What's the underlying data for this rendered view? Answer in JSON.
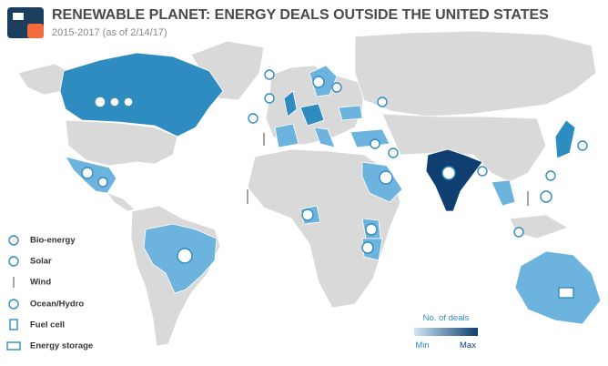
{
  "header": {
    "title": "RENEWABLE PLANET: ENERGY DEALS OUTSIDE THE UNITED STATES",
    "subtitle": "2015-2017 (as of 2/14/17)"
  },
  "legend": {
    "items": [
      "Bio-energy",
      "Solar",
      "Wind",
      "Ocean/Hydro",
      "Fuel cell",
      "Energy storage"
    ]
  },
  "scale": {
    "title": "No. of deals",
    "min": "Min",
    "max": "Max"
  }
}
